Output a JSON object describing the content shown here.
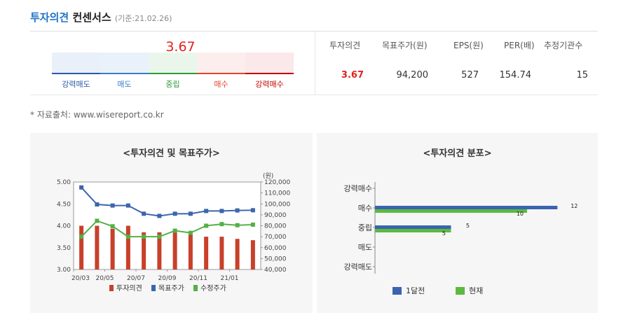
{
  "header": {
    "title_blue": "투자의견",
    "title_dark": "컨센서스",
    "date_note": "(기준:21.02.26)"
  },
  "gauge": {
    "value": "3.67",
    "labels": [
      "강력매도",
      "매도",
      "중립",
      "매수",
      "강력매수"
    ],
    "colors": {
      "strong_sell": "#2a58a8",
      "sell": "#3a7dc9",
      "neutral": "#2e9a3d",
      "buy": "#e0462e",
      "strong_buy": "#c40000"
    }
  },
  "summary": {
    "headers": [
      "투자의견",
      "목표주가(원)",
      "EPS(원)",
      "PER(배)",
      "추정기관수"
    ],
    "values": [
      "3.67",
      "94,200",
      "527",
      "154.74",
      "15"
    ]
  },
  "source_note": "* 자료출처: www.wisereport.co.kr",
  "chart_data": [
    {
      "type": "bar",
      "title": "<투자의견 및 목표주가>",
      "ylabel_right": "(원)",
      "left_axis": {
        "ylim": [
          3.0,
          5.0
        ],
        "ticks": [
          "5.00",
          "4.50",
          "4.00",
          "3.50",
          "3.00"
        ]
      },
      "right_axis": {
        "ylim": [
          40000,
          120000
        ],
        "ticks": [
          "120,000",
          "110,000",
          "100,000",
          "90,000",
          "80,000",
          "70,000",
          "60,000",
          "50,000",
          "40,000"
        ]
      },
      "x_tick_labels": [
        "20/03",
        "20/05",
        "20/07",
        "20/09",
        "20/11",
        "21/01"
      ],
      "series": [
        {
          "name": "투자의견",
          "type": "bar",
          "axis": "left",
          "color": "#c8402a",
          "values": [
            4.0,
            4.0,
            3.93,
            4.0,
            3.85,
            3.85,
            3.85,
            3.8,
            3.75,
            3.75,
            3.7,
            3.67
          ]
        },
        {
          "name": "목표주가",
          "type": "line",
          "axis": "right",
          "color": "#3b66ab",
          "values": [
            115000,
            99500,
            98500,
            98500,
            91000,
            89000,
            91000,
            91000,
            93500,
            93500,
            94000,
            94200
          ]
        },
        {
          "name": "수정주가",
          "type": "line",
          "axis": "right",
          "color": "#55b046",
          "values": [
            70000,
            84500,
            79500,
            70000,
            70000,
            70000,
            75500,
            73500,
            80000,
            81500,
            80500,
            81000
          ]
        }
      ]
    },
    {
      "type": "bar",
      "title": "<투자의견 분포>",
      "categories": [
        "강력매수",
        "매수",
        "중립",
        "매도",
        "강력매도"
      ],
      "xlim": [
        0,
        13
      ],
      "series": [
        {
          "name": "1달전",
          "color": "#3a64b0",
          "values": [
            0,
            12,
            5,
            0,
            0
          ]
        },
        {
          "name": "현재",
          "color": "#5cba40",
          "values": [
            0,
            10,
            5,
            0,
            0
          ]
        }
      ]
    }
  ]
}
